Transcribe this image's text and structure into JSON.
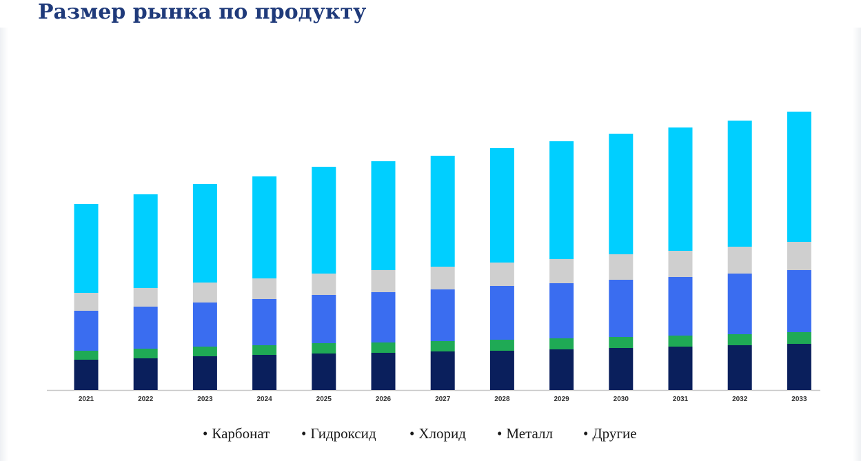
{
  "title": "Размер рынка по продукту",
  "colors": {
    "title": "#1f3a7a",
    "axis": "#c8c8c8"
  },
  "legend": [
    {
      "label": "Карбонат"
    },
    {
      "label": "Гидроксид"
    },
    {
      "label": "Хлорид"
    },
    {
      "label": "Металл"
    },
    {
      "label": "Другие"
    }
  ],
  "chart_data": {
    "type": "bar",
    "stacked": true,
    "title": "Размер рынка по продукту",
    "categories": [
      "2021",
      "2022",
      "2023",
      "2024",
      "2025",
      "2026",
      "2027",
      "2028",
      "2029",
      "2030",
      "2031",
      "2032",
      "2033"
    ],
    "y_axis_visible": false,
    "grid": false,
    "legend_position": "bottom",
    "series": [
      {
        "name": "Металл",
        "color": "#0a1f5c",
        "values": [
          44,
          46,
          49,
          51,
          53,
          54,
          56,
          57,
          59,
          61,
          63,
          65,
          67
        ]
      },
      {
        "name": "Хлорид",
        "color": "#1faa55",
        "values": [
          13,
          14,
          14,
          14,
          15,
          15,
          15,
          16,
          16,
          16,
          16,
          16,
          17
        ]
      },
      {
        "name": "Гидроксид",
        "color": "#3a6df0",
        "values": [
          58,
          61,
          64,
          67,
          70,
          73,
          75,
          78,
          80,
          83,
          85,
          88,
          90
        ]
      },
      {
        "name": "Другие",
        "color": "#cfcfcf",
        "values": [
          26,
          27,
          29,
          30,
          31,
          32,
          33,
          34,
          35,
          37,
          38,
          39,
          41
        ]
      },
      {
        "name": "Карбонат",
        "color": "#00cfff",
        "values": [
          129,
          136,
          143,
          148,
          155,
          158,
          161,
          166,
          171,
          175,
          179,
          183,
          189
        ]
      }
    ]
  }
}
